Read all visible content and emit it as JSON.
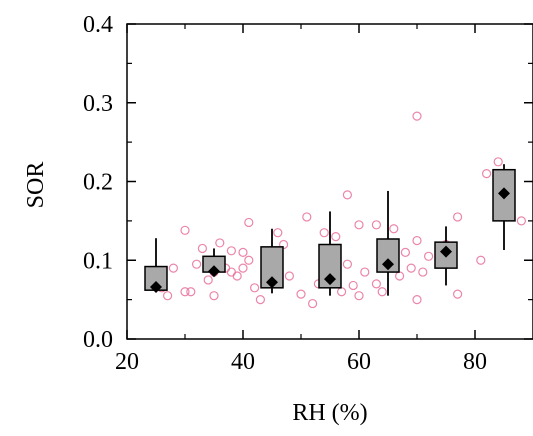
{
  "chart_data": {
    "type": "box+scatter",
    "title": "",
    "xlabel": "RH (%)",
    "ylabel": "SOR",
    "xlim": [
      20,
      90
    ],
    "ylim": [
      0.0,
      0.4
    ],
    "x_ticks": [
      20,
      40,
      60,
      80
    ],
    "y_ticks": [
      0.0,
      0.1,
      0.2,
      0.3,
      0.4
    ],
    "x_tick_labels": [
      "20",
      "40",
      "60",
      "80"
    ],
    "y_tick_labels": [
      "0.0",
      "0.1",
      "0.2",
      "0.3",
      "0.4"
    ],
    "grid": false,
    "colors": {
      "box_fill": "#a9a9a9",
      "box_stroke": "#000000",
      "points": "#e8709c",
      "mean_marker": "#000000"
    },
    "boxes": [
      {
        "x": 25,
        "whisker_low": 0.062,
        "q1": 0.062,
        "q3": 0.092,
        "whisker_high": 0.128,
        "mean": 0.066
      },
      {
        "x": 35,
        "whisker_low": 0.08,
        "q1": 0.085,
        "q3": 0.105,
        "whisker_high": 0.115,
        "mean": 0.086
      },
      {
        "x": 45,
        "whisker_low": 0.058,
        "q1": 0.065,
        "q3": 0.117,
        "whisker_high": 0.14,
        "mean": 0.072
      },
      {
        "x": 55,
        "whisker_low": 0.055,
        "q1": 0.065,
        "q3": 0.12,
        "whisker_high": 0.162,
        "mean": 0.076
      },
      {
        "x": 65,
        "whisker_low": 0.055,
        "q1": 0.085,
        "q3": 0.127,
        "whisker_high": 0.188,
        "mean": 0.095
      },
      {
        "x": 75,
        "whisker_low": 0.068,
        "q1": 0.09,
        "q3": 0.123,
        "whisker_high": 0.143,
        "mean": 0.111
      },
      {
        "x": 85,
        "whisker_low": 0.113,
        "q1": 0.15,
        "q3": 0.215,
        "whisker_high": 0.222,
        "mean": 0.185
      }
    ],
    "points": [
      [
        26,
        0.065
      ],
      [
        27,
        0.055
      ],
      [
        28,
        0.09
      ],
      [
        30,
        0.06
      ],
      [
        30,
        0.138
      ],
      [
        31,
        0.06
      ],
      [
        32,
        0.095
      ],
      [
        33,
        0.115
      ],
      [
        34,
        0.075
      ],
      [
        35,
        0.055
      ],
      [
        35,
        0.085
      ],
      [
        36,
        0.122
      ],
      [
        37,
        0.09
      ],
      [
        38,
        0.085
      ],
      [
        38,
        0.112
      ],
      [
        39,
        0.08
      ],
      [
        40,
        0.09
      ],
      [
        40,
        0.11
      ],
      [
        41,
        0.148
      ],
      [
        41,
        0.1
      ],
      [
        42,
        0.065
      ],
      [
        43,
        0.05
      ],
      [
        44,
        0.075
      ],
      [
        45,
        0.095
      ],
      [
        46,
        0.135
      ],
      [
        47,
        0.12
      ],
      [
        48,
        0.08
      ],
      [
        50,
        0.057
      ],
      [
        51,
        0.155
      ],
      [
        52,
        0.045
      ],
      [
        53,
        0.07
      ],
      [
        54,
        0.135
      ],
      [
        55,
        0.1
      ],
      [
        56,
        0.13
      ],
      [
        57,
        0.06
      ],
      [
        58,
        0.095
      ],
      [
        58,
        0.183
      ],
      [
        59,
        0.068
      ],
      [
        60,
        0.145
      ],
      [
        60,
        0.055
      ],
      [
        61,
        0.085
      ],
      [
        63,
        0.07
      ],
      [
        63,
        0.145
      ],
      [
        64,
        0.06
      ],
      [
        65,
        0.1
      ],
      [
        66,
        0.14
      ],
      [
        67,
        0.08
      ],
      [
        68,
        0.11
      ],
      [
        69,
        0.09
      ],
      [
        70,
        0.283
      ],
      [
        70,
        0.05
      ],
      [
        70,
        0.125
      ],
      [
        71,
        0.085
      ],
      [
        72,
        0.105
      ],
      [
        74,
        0.1
      ],
      [
        75,
        0.12
      ],
      [
        77,
        0.155
      ],
      [
        77,
        0.057
      ],
      [
        81,
        0.1
      ],
      [
        82,
        0.21
      ],
      [
        84,
        0.225
      ],
      [
        86,
        0.21
      ],
      [
        88,
        0.15
      ]
    ]
  }
}
